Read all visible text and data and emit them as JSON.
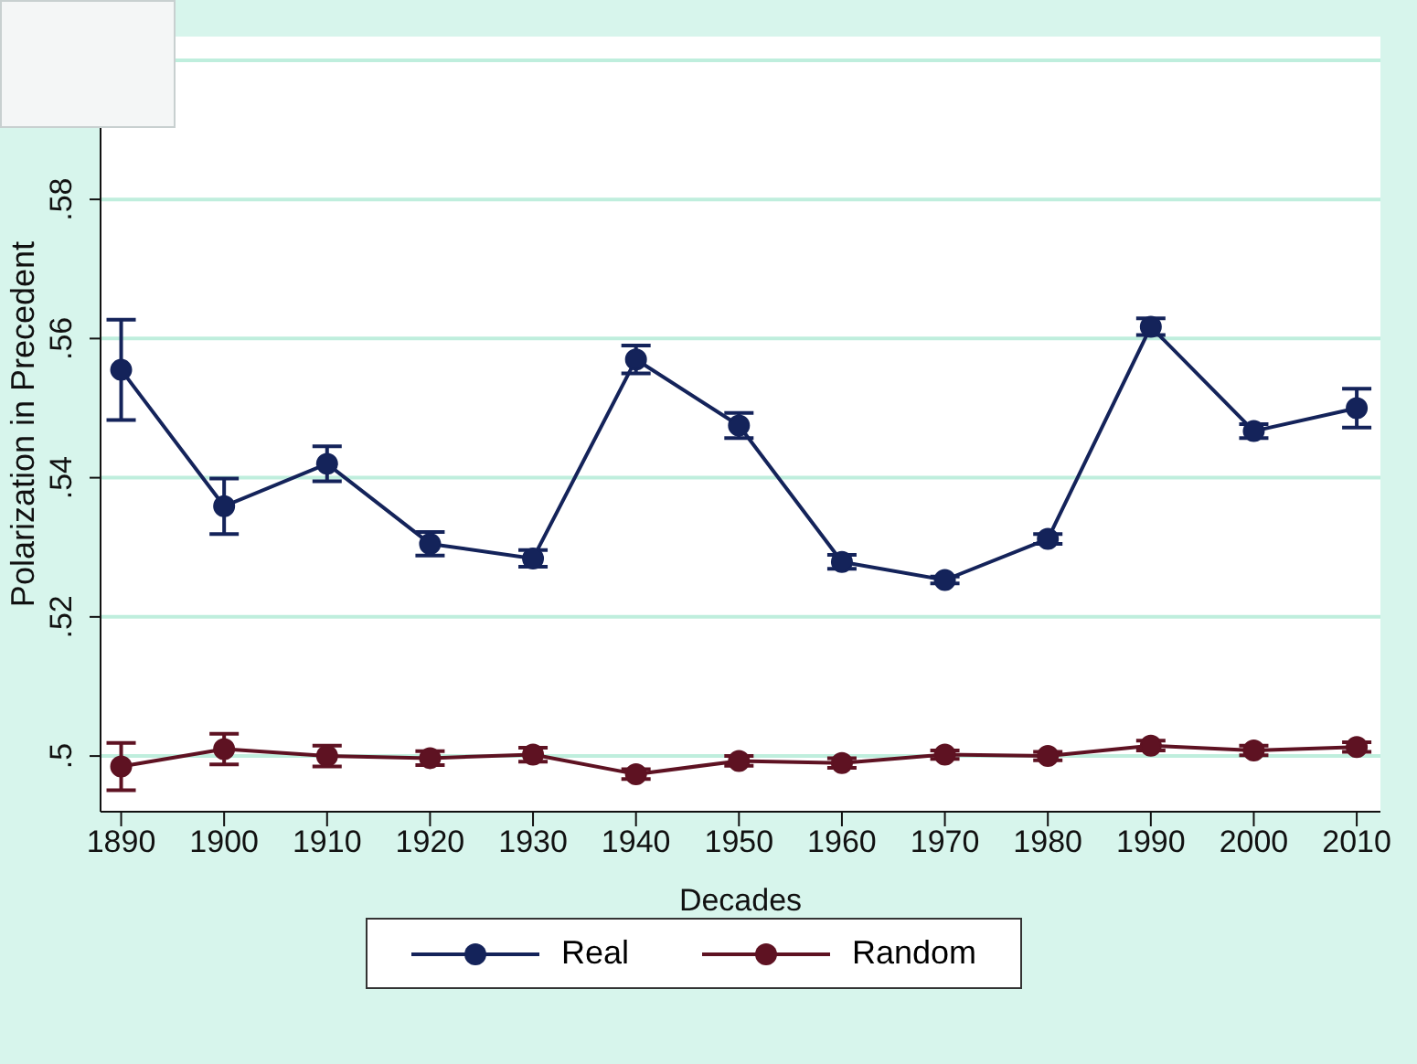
{
  "chart_data": {
    "type": "line",
    "xlabel": "Decades",
    "ylabel": "Polarization in Precedent",
    "x": [
      1890,
      1900,
      1910,
      1920,
      1930,
      1940,
      1950,
      1960,
      1970,
      1980,
      1990,
      2000,
      2010
    ],
    "xlim": [
      1888,
      2012.3
    ],
    "xticks": [
      1890,
      1900,
      1910,
      1920,
      1930,
      1940,
      1950,
      1960,
      1970,
      1980,
      1990,
      2000,
      2010
    ],
    "ylim": [
      0.492,
      0.6034
    ],
    "yticks": [
      {
        "value": 0.5,
        "label": ".5"
      },
      {
        "value": 0.52,
        "label": ".52"
      },
      {
        "value": 0.54,
        "label": ".54"
      },
      {
        "value": 0.56,
        "label": ".56"
      },
      {
        "value": 0.58,
        "label": ".58"
      },
      {
        "value": 0.6,
        "label": null
      }
    ],
    "grid": "y",
    "legend": "bottom",
    "marker": "circle",
    "line_style": "solid",
    "series": [
      {
        "name": "Real",
        "color": "#14235a",
        "values": [
          0.5555,
          0.5359,
          0.542,
          0.5305,
          0.5284,
          0.557,
          0.5475,
          0.5279,
          0.5253,
          0.5312,
          0.5617,
          0.5467,
          0.55
        ],
        "errors": [
          0.0072,
          0.004,
          0.0025,
          0.0017,
          0.0012,
          0.002,
          0.0018,
          0.001,
          0.0005,
          0.0007,
          0.0012,
          0.001,
          0.0028
        ]
      },
      {
        "name": "Random",
        "color": "#5e1222",
        "values": [
          0.4985,
          0.501,
          0.5,
          0.4997,
          0.5002,
          0.4974,
          0.4993,
          0.499,
          0.5002,
          0.5,
          0.5015,
          0.5008,
          0.5013
        ],
        "errors": [
          0.0034,
          0.0022,
          0.0015,
          0.001,
          0.001,
          0.0007,
          0.0007,
          0.0007,
          0.0006,
          0.0006,
          0.0007,
          0.0007,
          0.0007
        ]
      }
    ]
  }
}
